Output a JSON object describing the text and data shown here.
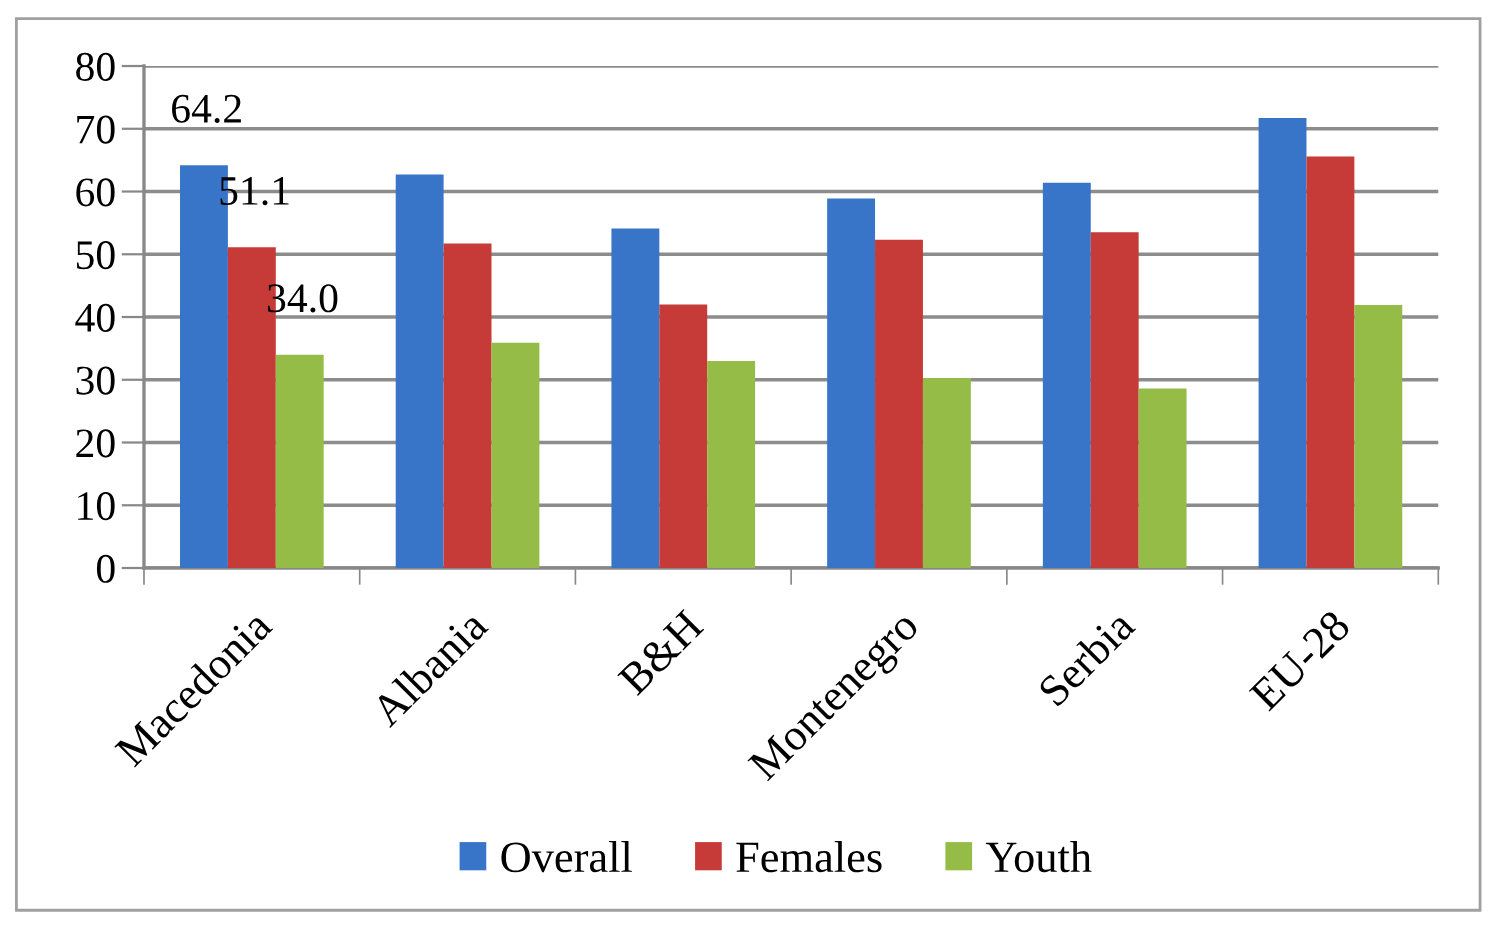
{
  "chart_data": {
    "type": "bar",
    "categories": [
      "Macedonia",
      "Albania",
      "B&H",
      "Montenegro",
      "Serbia",
      "EU-28"
    ],
    "series": [
      {
        "name": "Overall",
        "color": "#3874c8",
        "values": [
          64.2,
          62.7,
          54.1,
          58.9,
          61.4,
          71.7
        ],
        "value_labels": [
          "64.2",
          null,
          null,
          null,
          null,
          null
        ]
      },
      {
        "name": "Females",
        "color": "#c63a37",
        "values": [
          51.1,
          51.7,
          42.0,
          52.3,
          53.5,
          65.6
        ],
        "value_labels": [
          "51.1",
          null,
          null,
          null,
          null,
          null
        ]
      },
      {
        "name": "Youth",
        "color": "#94bc47",
        "values": [
          34.0,
          35.9,
          33.0,
          30.3,
          28.6,
          41.9
        ],
        "value_labels": [
          "34.0",
          null,
          null,
          null,
          null,
          null
        ]
      }
    ],
    "ylim": [
      0,
      80
    ],
    "yticks": [
      0,
      10,
      20,
      30,
      40,
      50,
      60,
      70,
      80
    ],
    "grid": "y",
    "legend": "bottom"
  }
}
